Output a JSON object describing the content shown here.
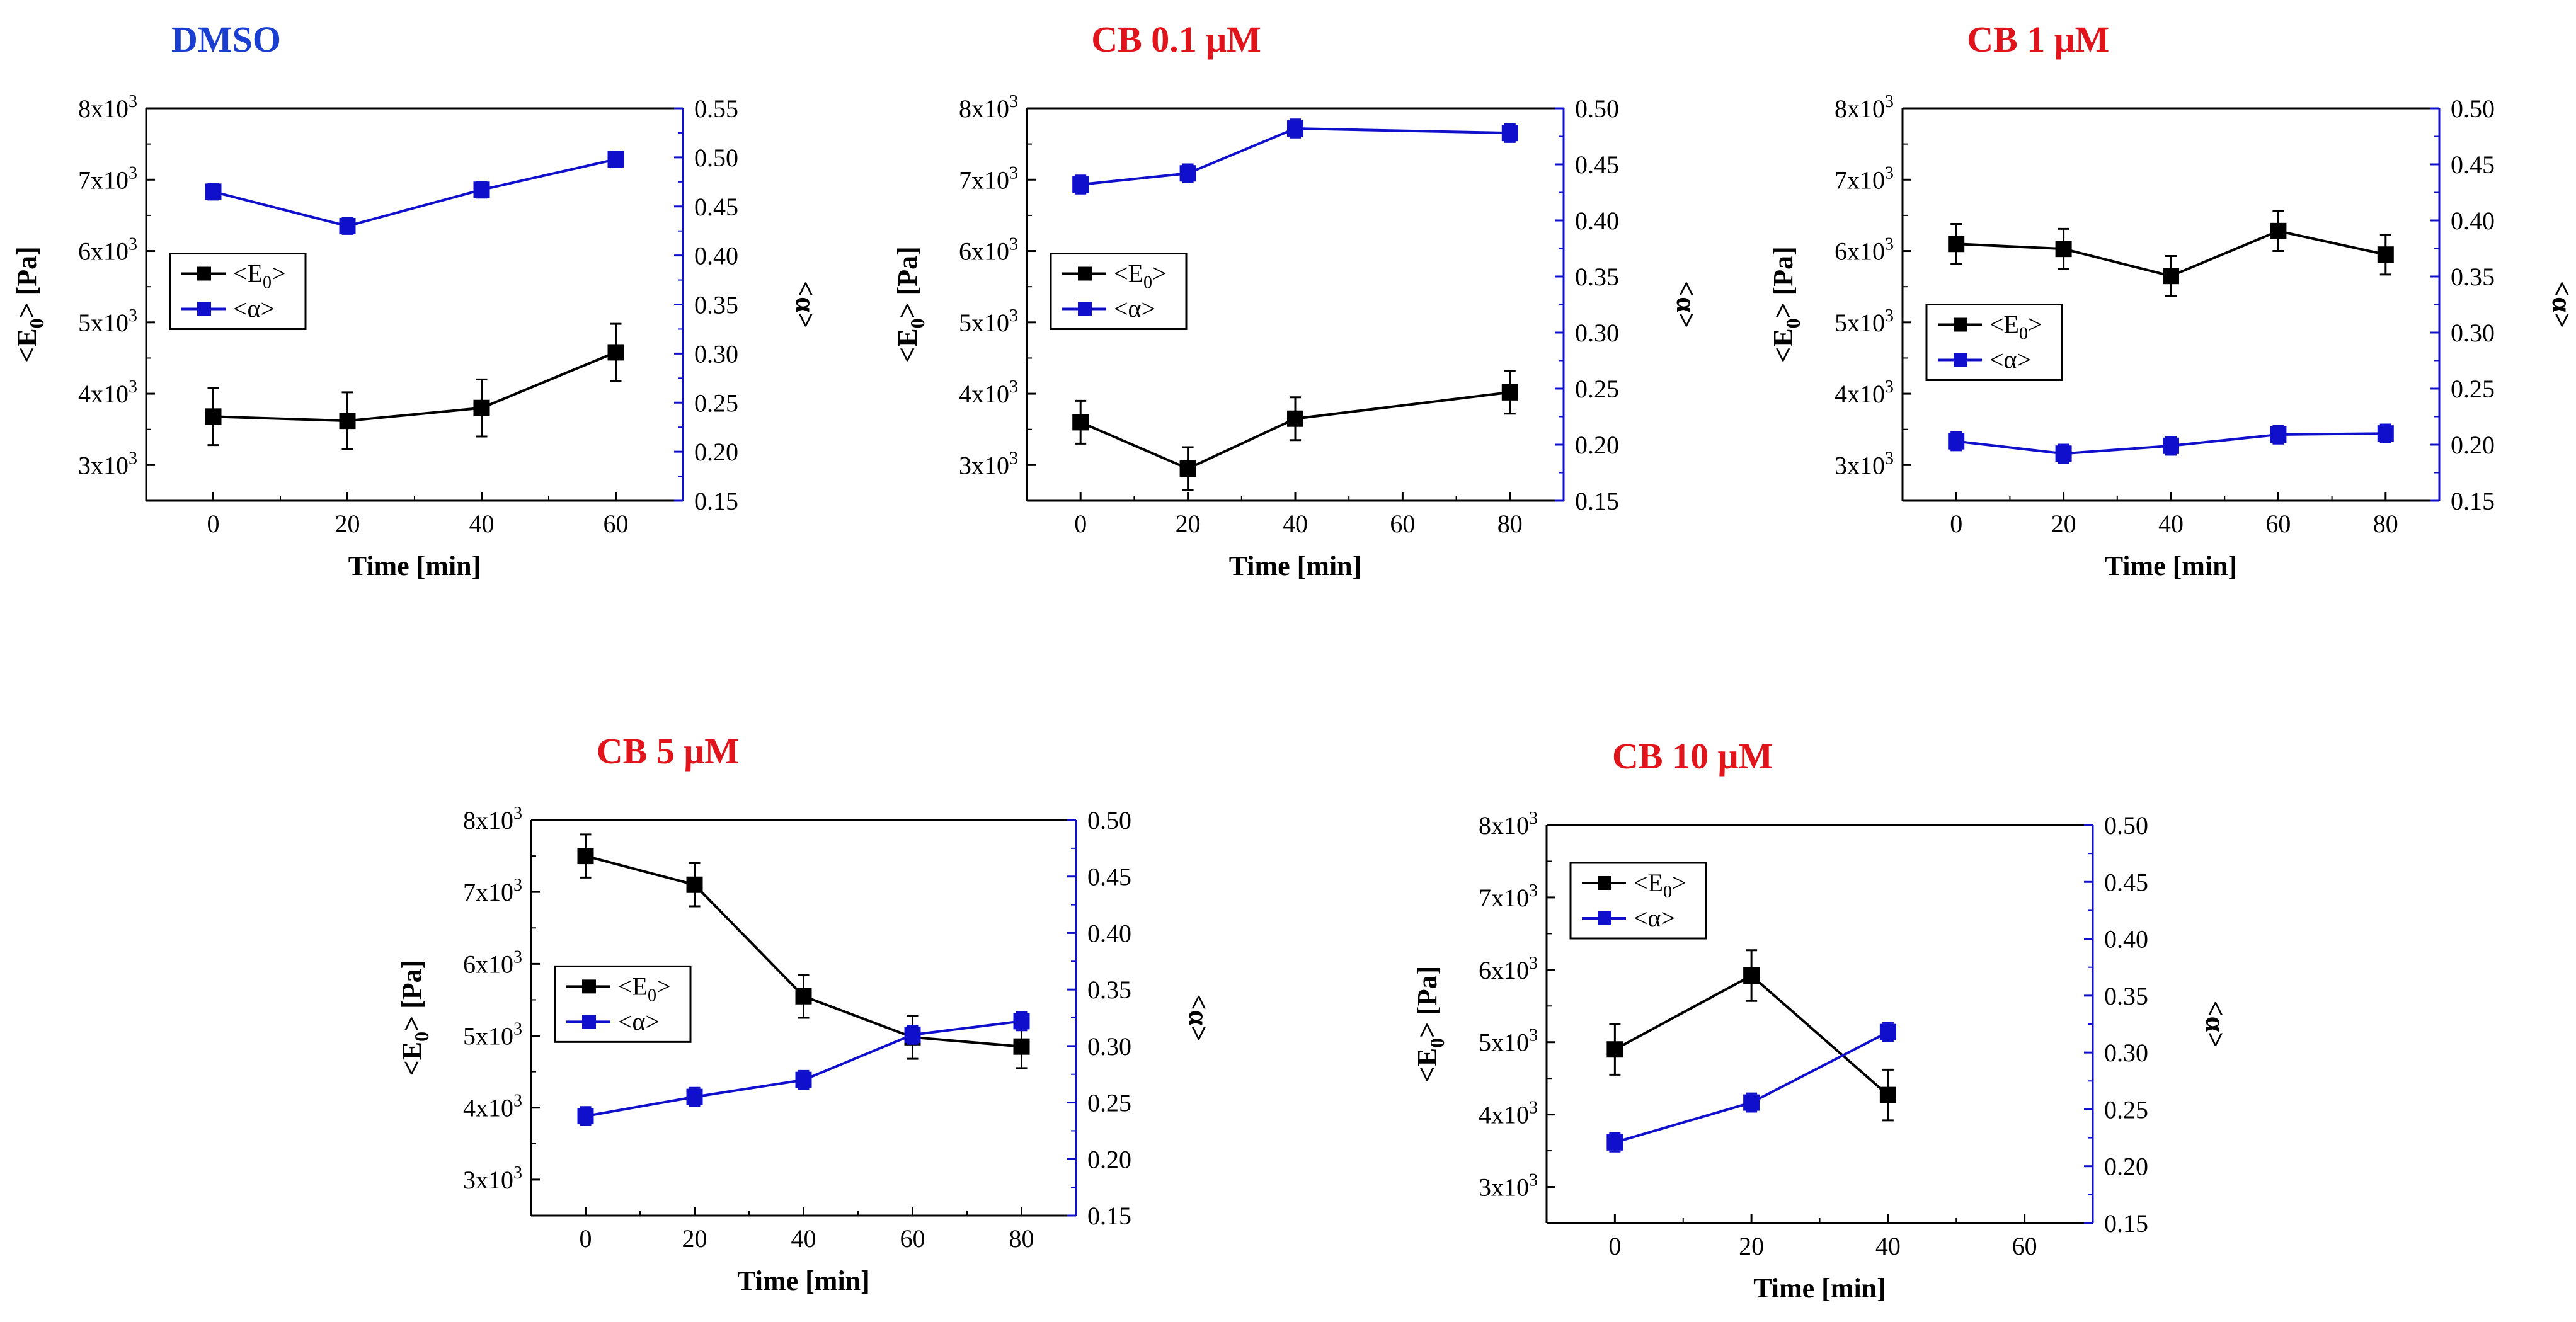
{
  "colors": {
    "e0": "#000000",
    "alpha": "#1010cc",
    "title_blue": "#1a3fd0",
    "title_red": "#e0141a",
    "axis_right": "#1010cc"
  },
  "chart_data": [
    {
      "type": "line",
      "title": "DMSO",
      "title_color": "#1a3fd0",
      "xlabel": "Time [min]",
      "ylabel_left": "<E0> [Pa]",
      "ylabel_right": "<α>",
      "xlim": [
        -10,
        70
      ],
      "xticks": [
        0,
        20,
        40,
        60
      ],
      "ylim_left": [
        2500,
        8000
      ],
      "yticks_left": [
        3000,
        4000,
        5000,
        6000,
        7000,
        8000
      ],
      "ylim_right": [
        0.15,
        0.55
      ],
      "yticks_right": [
        0.15,
        0.2,
        0.25,
        0.3,
        0.35,
        0.4,
        0.45,
        0.5,
        0.55
      ],
      "legend": {
        "position": "center-left",
        "entries": [
          "<E0>",
          "<α>"
        ]
      },
      "series": [
        {
          "name": "<E0>",
          "axis": "left",
          "x": [
            0,
            20,
            40,
            60
          ],
          "y": [
            3680,
            3620,
            3800,
            4580
          ],
          "err": [
            400,
            400,
            400,
            400
          ]
        },
        {
          "name": "<α>",
          "axis": "right",
          "x": [
            0,
            20,
            40,
            60
          ],
          "y": [
            0.465,
            0.43,
            0.467,
            0.498
          ],
          "err": [
            0.008,
            0.008,
            0.008,
            0.008
          ]
        }
      ]
    },
    {
      "type": "line",
      "title": "CB 0.1 μM",
      "title_color": "#e0141a",
      "xlabel": "Time [min]",
      "ylabel_left": "<E0> [Pa]",
      "ylabel_right": "<α>",
      "xlim": [
        -10,
        90
      ],
      "xticks": [
        0,
        20,
        40,
        60,
        80
      ],
      "ylim_left": [
        2500,
        8000
      ],
      "yticks_left": [
        3000,
        4000,
        5000,
        6000,
        7000,
        8000
      ],
      "ylim_right": [
        0.15,
        0.5
      ],
      "yticks_right": [
        0.15,
        0.2,
        0.25,
        0.3,
        0.35,
        0.4,
        0.45,
        0.5
      ],
      "legend": {
        "position": "center-left",
        "entries": [
          "<E0>",
          "<α>"
        ]
      },
      "series": [
        {
          "name": "<E0>",
          "axis": "left",
          "x": [
            0,
            20,
            40,
            80
          ],
          "y": [
            3600,
            2950,
            3650,
            4020
          ],
          "err": [
            300,
            300,
            300,
            300
          ]
        },
        {
          "name": "<α>",
          "axis": "right",
          "x": [
            0,
            20,
            40,
            80
          ],
          "y": [
            0.432,
            0.442,
            0.482,
            0.478
          ],
          "err": [
            0.008,
            0.008,
            0.008,
            0.008
          ]
        }
      ]
    },
    {
      "type": "line",
      "title": "CB 1 μM",
      "title_color": "#e0141a",
      "xlabel": "Time [min]",
      "ylabel_left": "<E0> [Pa]",
      "ylabel_right": "<α>",
      "xlim": [
        -10,
        90
      ],
      "xticks": [
        0,
        20,
        40,
        60,
        80
      ],
      "ylim_left": [
        2500,
        8000
      ],
      "yticks_left": [
        3000,
        4000,
        5000,
        6000,
        7000,
        8000
      ],
      "ylim_right": [
        0.15,
        0.5
      ],
      "yticks_right": [
        0.15,
        0.2,
        0.25,
        0.3,
        0.35,
        0.4,
        0.45,
        0.5
      ],
      "legend": {
        "position": "center-left",
        "entries": [
          "<E0>",
          "<α>"
        ]
      },
      "series": [
        {
          "name": "<E0>",
          "axis": "left",
          "x": [
            0,
            20,
            40,
            60,
            80
          ],
          "y": [
            6100,
            6030,
            5650,
            6280,
            5950
          ],
          "err": [
            280,
            280,
            280,
            280,
            280
          ]
        },
        {
          "name": "<α>",
          "axis": "right",
          "x": [
            0,
            20,
            40,
            60,
            80
          ],
          "y": [
            0.203,
            0.192,
            0.199,
            0.209,
            0.21
          ],
          "err": [
            0.008,
            0.008,
            0.008,
            0.008,
            0.008
          ]
        }
      ]
    },
    {
      "type": "line",
      "title": "CB 5 μM",
      "title_color": "#e0141a",
      "xlabel": "Time [min]",
      "ylabel_left": "<E0> [Pa]",
      "ylabel_right": "<α>",
      "xlim": [
        -10,
        90
      ],
      "xticks": [
        0,
        20,
        40,
        60,
        80
      ],
      "ylim_left": [
        2500,
        8000
      ],
      "yticks_left": [
        3000,
        4000,
        5000,
        6000,
        7000,
        8000
      ],
      "ylim_right": [
        0.15,
        0.5
      ],
      "yticks_right": [
        0.15,
        0.2,
        0.25,
        0.3,
        0.35,
        0.4,
        0.45,
        0.5
      ],
      "legend": {
        "position": "center-left",
        "entries": [
          "<E0>",
          "<α>"
        ]
      },
      "series": [
        {
          "name": "<E0>",
          "axis": "left",
          "x": [
            0,
            20,
            40,
            60,
            80
          ],
          "y": [
            7500,
            7100,
            5550,
            4980,
            4850
          ],
          "err": [
            300,
            300,
            300,
            300,
            300
          ]
        },
        {
          "name": "<α>",
          "axis": "right",
          "x": [
            0,
            20,
            40,
            60,
            80
          ],
          "y": [
            0.238,
            0.255,
            0.27,
            0.31,
            0.322
          ],
          "err": [
            0.008,
            0.008,
            0.008,
            0.008,
            0.008
          ]
        }
      ]
    },
    {
      "type": "line",
      "title": "CB 10 μM",
      "title_color": "#e0141a",
      "xlabel": "Time [min]",
      "ylabel_left": "<E0> [Pa]",
      "ylabel_right": "<α>",
      "xlim": [
        -10,
        70
      ],
      "xticks": [
        0,
        20,
        40,
        60
      ],
      "ylim_left": [
        2500,
        8000
      ],
      "yticks_left": [
        3000,
        4000,
        5000,
        6000,
        7000,
        8000
      ],
      "ylim_right": [
        0.15,
        0.5
      ],
      "yticks_right": [
        0.15,
        0.2,
        0.25,
        0.3,
        0.35,
        0.4,
        0.45,
        0.5
      ],
      "legend": {
        "position": "top-left",
        "entries": [
          "<E0>",
          "<α>"
        ]
      },
      "series": [
        {
          "name": "<E0>",
          "axis": "left",
          "x": [
            0,
            20,
            40
          ],
          "y": [
            4900,
            5920,
            4270
          ],
          "err": [
            350,
            350,
            350
          ]
        },
        {
          "name": "<α>",
          "axis": "right",
          "x": [
            0,
            20,
            40
          ],
          "y": [
            0.221,
            0.256,
            0.318
          ],
          "err": [
            0.008,
            0.008,
            0.008
          ]
        }
      ]
    }
  ]
}
